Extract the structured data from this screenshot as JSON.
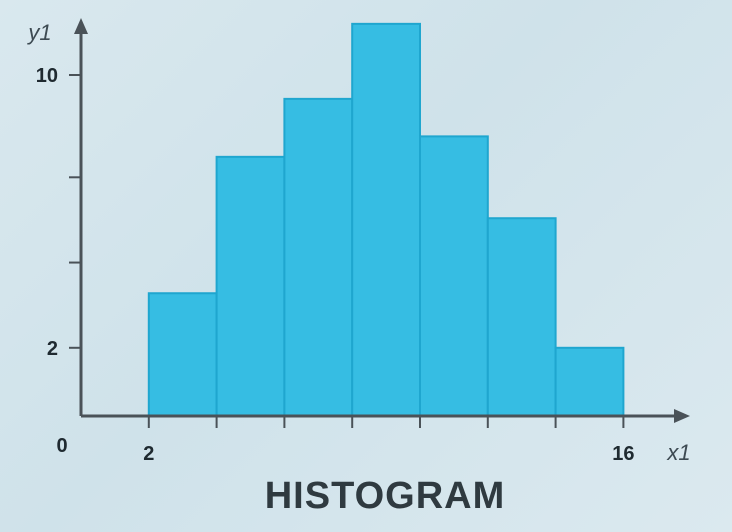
{
  "chart_data": {
    "type": "bar",
    "title": "HISTOGRAM",
    "xlabel": "x1",
    "ylabel": "y1",
    "bins": [
      {
        "x0": 2,
        "x1": 4,
        "value": 3.6
      },
      {
        "x0": 4,
        "x1": 6,
        "value": 7.6
      },
      {
        "x0": 6,
        "x1": 8,
        "value": 9.3
      },
      {
        "x0": 8,
        "x1": 10,
        "value": 11.5
      },
      {
        "x0": 10,
        "x1": 12,
        "value": 8.2
      },
      {
        "x0": 12,
        "x1": 14,
        "value": 5.8
      },
      {
        "x0": 14,
        "x1": 16,
        "value": 2.0
      }
    ],
    "x_tick_labels": [
      {
        "value": 2,
        "label": "2"
      },
      {
        "value": 16,
        "label": "16"
      }
    ],
    "x_ticks": [
      2,
      4,
      6,
      8,
      10,
      12,
      14,
      16
    ],
    "y_tick_labels": [
      {
        "value": 2,
        "label": "2"
      },
      {
        "value": 10,
        "label": "10"
      }
    ],
    "y_ticks": [
      2,
      4.5,
      7,
      10
    ],
    "origin_label": "0",
    "xlim": [
      0,
      18
    ],
    "ylim": [
      0,
      12.6
    ],
    "grid": false,
    "colors": {
      "bar_fill": "#36bde3",
      "bar_stroke": "#1fa6cf",
      "axis": "#4a5258"
    }
  }
}
